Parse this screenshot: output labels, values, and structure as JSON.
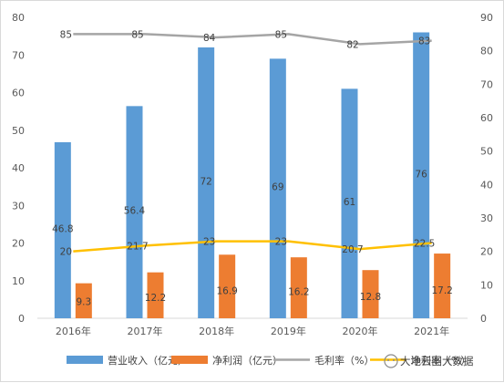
{
  "chart_data": {
    "type": "bar",
    "categories": [
      "2016年",
      "2017年",
      "2018年",
      "2019年",
      "2020年",
      "2021年"
    ],
    "series": [
      {
        "name": "营业收入（亿元）",
        "type": "bar",
        "axis": "left",
        "color": "#5B9BD5",
        "values": [
          46.8,
          56.4,
          72,
          69,
          61,
          76
        ]
      },
      {
        "name": "净利润（亿元）",
        "type": "bar",
        "axis": "left",
        "color": "#ED7D31",
        "values": [
          9.3,
          12.2,
          16.9,
          16.2,
          12.8,
          17.2
        ]
      },
      {
        "name": "毛利率（%）",
        "type": "line",
        "axis": "right",
        "color": "#A5A5A5",
        "values": [
          85,
          85,
          84,
          85,
          82,
          83
        ]
      },
      {
        "name": "净利率（%）",
        "type": "line",
        "axis": "right",
        "color": "#FFC000",
        "values": [
          20,
          21.7,
          23,
          23,
          20.7,
          22.5
        ]
      }
    ],
    "y_left": {
      "min": 0,
      "max": 80,
      "ticks": [
        0,
        10,
        20,
        30,
        40,
        50,
        60,
        70,
        80
      ]
    },
    "y_right": {
      "min": 0,
      "max": 90,
      "ticks": [
        0,
        10,
        20,
        30,
        40,
        50,
        60,
        70,
        80,
        90
      ]
    },
    "grid": false,
    "legend_position": "bottom"
  },
  "watermark": "大地云图大数据"
}
